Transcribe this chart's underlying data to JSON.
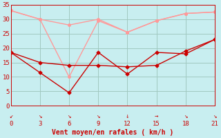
{
  "x": [
    0,
    3,
    6,
    9,
    12,
    15,
    18,
    21
  ],
  "line_pink1": [
    33,
    30,
    28,
    30,
    25.5,
    29.5,
    32,
    32.5
  ],
  "line_pink2": [
    33,
    30,
    10,
    29.5,
    25.5,
    29.5,
    32,
    32.5
  ],
  "line_red1": [
    18.5,
    11.5,
    4.5,
    18.5,
    11,
    18.5,
    18,
    23
  ],
  "line_red2": [
    18.5,
    15,
    14,
    14,
    13.5,
    14,
    19,
    23
  ],
  "color_pink": "#ff9999",
  "color_red": "#cc0000",
  "xlabel": "Vent moyen/en rafales ( km/h )",
  "xlim": [
    0,
    21
  ],
  "ylim": [
    0,
    35
  ],
  "xticks": [
    0,
    3,
    6,
    9,
    12,
    15,
    18,
    21
  ],
  "yticks": [
    0,
    5,
    10,
    15,
    20,
    25,
    30,
    35
  ],
  "bg_color": "#c8eef0",
  "grid_color": "#a0c8c0",
  "xlabel_color": "#cc0000",
  "tick_color": "#cc0000",
  "arrow_symbols": [
    "↙",
    "↘",
    "↘",
    "↘",
    "↓",
    "→",
    "↘",
    "↘"
  ]
}
